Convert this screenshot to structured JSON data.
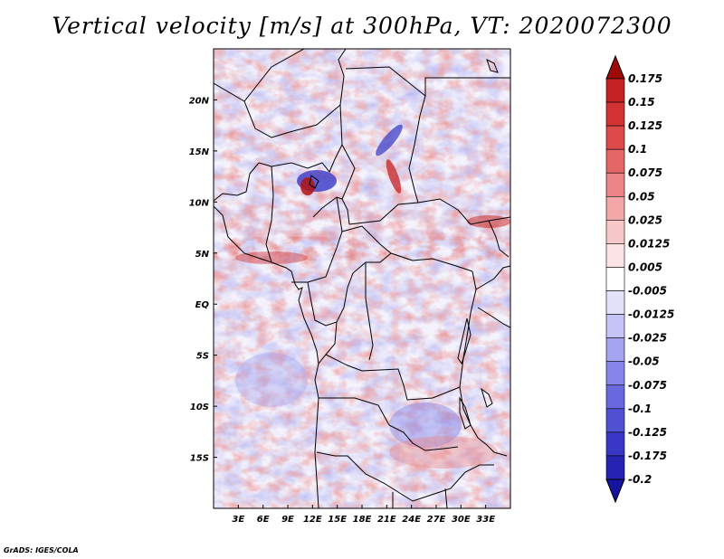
{
  "title": "Vertical velocity [m/s] at 300hPa, VT: 2020072300",
  "credit": "GrADS: IGES/COLA",
  "map": {
    "lon_range": [
      0,
      36
    ],
    "lat_range": [
      -20,
      25
    ],
    "lon_ticks": [
      {
        "value": 3,
        "label": "3E"
      },
      {
        "value": 6,
        "label": "6E"
      },
      {
        "value": 9,
        "label": "9E"
      },
      {
        "value": 12,
        "label": "12E"
      },
      {
        "value": 15,
        "label": "15E"
      },
      {
        "value": 18,
        "label": "18E"
      },
      {
        "value": 21,
        "label": "21E"
      },
      {
        "value": 24,
        "label": "24E"
      },
      {
        "value": 27,
        "label": "27E"
      },
      {
        "value": 30,
        "label": "30E"
      },
      {
        "value": 33,
        "label": "33E"
      }
    ],
    "lat_ticks": [
      {
        "value": 20,
        "label": "20N"
      },
      {
        "value": 15,
        "label": "15N"
      },
      {
        "value": 10,
        "label": "10N"
      },
      {
        "value": 5,
        "label": "5N"
      },
      {
        "value": 0,
        "label": "EQ"
      },
      {
        "value": -5,
        "label": "5S"
      },
      {
        "value": -10,
        "label": "10S"
      },
      {
        "value": -15,
        "label": "15S"
      }
    ]
  },
  "colorbar": {
    "levels": [
      {
        "label": "0.175",
        "color": "#b01313"
      },
      {
        "label": "0.15",
        "color": "#c42222"
      },
      {
        "label": "0.125",
        "color": "#d23434"
      },
      {
        "label": "0.1",
        "color": "#dc4a4a"
      },
      {
        "label": "0.075",
        "color": "#e46666"
      },
      {
        "label": "0.05",
        "color": "#ec8686"
      },
      {
        "label": "0.025",
        "color": "#f3a8a8"
      },
      {
        "label": "0.0125",
        "color": "#f8c8c8"
      },
      {
        "label": "0.005",
        "color": "#fce4e4"
      },
      {
        "label": "-0.005",
        "color": "#ffffff"
      },
      {
        "label": "-0.0125",
        "color": "#e2e2fb"
      },
      {
        "label": "-0.025",
        "color": "#c4c4f6"
      },
      {
        "label": "-0.05",
        "color": "#a4a4f0"
      },
      {
        "label": "-0.075",
        "color": "#8686e8"
      },
      {
        "label": "-0.1",
        "color": "#6a6ade"
      },
      {
        "label": "-0.125",
        "color": "#5050d2"
      },
      {
        "label": "-0.175",
        "color": "#3838c4"
      },
      {
        "label": "-0.2",
        "color": "#2424b0"
      }
    ],
    "top_tip_color": "#9e0a0a",
    "bottom_tip_color": "#14149e"
  },
  "borders_color": "#000000"
}
